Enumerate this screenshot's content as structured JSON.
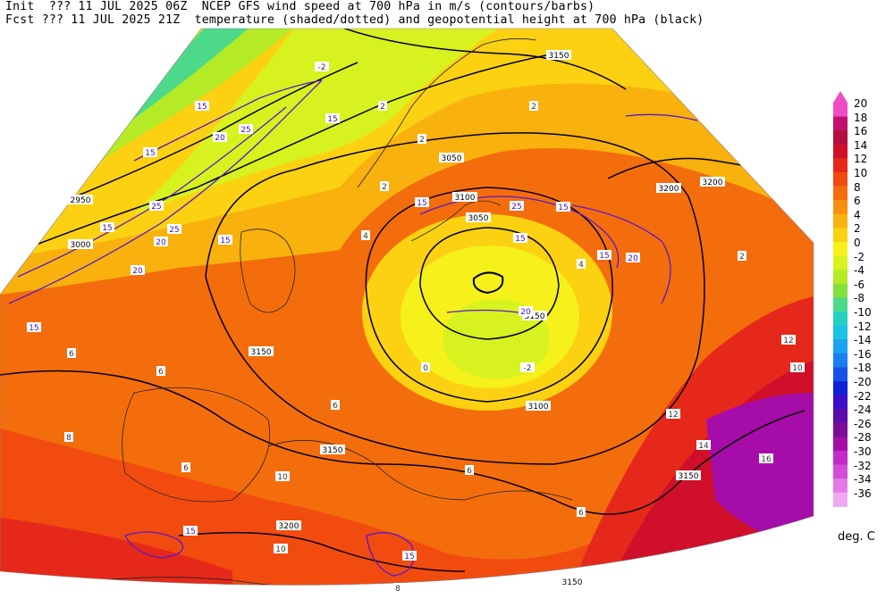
{
  "header": {
    "init_line": "Init  ??? 11 JUL 2025 06Z  NCEP GFS wind speed at 700 hPa in m/s (contours/barbs)",
    "fcst_line": "Fcst ??? 11 JUL 2025 21Z  temperature (shaded/dotted) and geopotential height at 700 hPa (black)"
  },
  "colorbar": {
    "units": "deg. C",
    "levels": [
      "20",
      "18",
      "16",
      "14",
      "12",
      "10",
      "8",
      "6",
      "4",
      "2",
      "0",
      "-2",
      "-4",
      "-6",
      "-8",
      "-10",
      "-12",
      "-14",
      "-16",
      "-18",
      "-20",
      "-22",
      "-24",
      "-26",
      "-28",
      "-30",
      "-32",
      "-34",
      "-36"
    ],
    "colors": [
      "#f04dc4",
      "#c0106e",
      "#b30e3e",
      "#d0102a",
      "#e6281a",
      "#f24b10",
      "#f46d0c",
      "#f7900c",
      "#f9b10d",
      "#fbd112",
      "#f6f01b",
      "#d7f21f",
      "#b4ea26",
      "#84e03c",
      "#4dd98a",
      "#25d1c2",
      "#1bc2e6",
      "#1aa3f0",
      "#197ef0",
      "#1553e8",
      "#1020d8",
      "#3c10c8",
      "#5c0ca8",
      "#7c0c9a",
      "#a60ca8",
      "#c52aca",
      "#d64ddc",
      "#e37ae8",
      "#f0a8f2"
    ]
  },
  "contour_labels": {
    "height": [
      "3150",
      "3150",
      "3150",
      "3150",
      "3150",
      "3100",
      "3100",
      "3050",
      "3050",
      "3000",
      "2950",
      "3200",
      "3200",
      "3200",
      "3150"
    ],
    "wind": [
      "15",
      "15",
      "20",
      "25",
      "15",
      "25",
      "20",
      "25",
      "20",
      "20",
      "15",
      "15",
      "15",
      "25",
      "15",
      "15",
      "20",
      "15",
      "15",
      "15",
      "15"
    ],
    "temp": [
      "-2",
      "2",
      "2",
      "2",
      "4",
      "6",
      "6",
      "6",
      "6",
      "8",
      "10",
      "12",
      "10",
      "12",
      "14",
      "16",
      "10",
      "6",
      "8",
      "6",
      "4",
      "-2",
      "2",
      "0",
      "2"
    ]
  }
}
